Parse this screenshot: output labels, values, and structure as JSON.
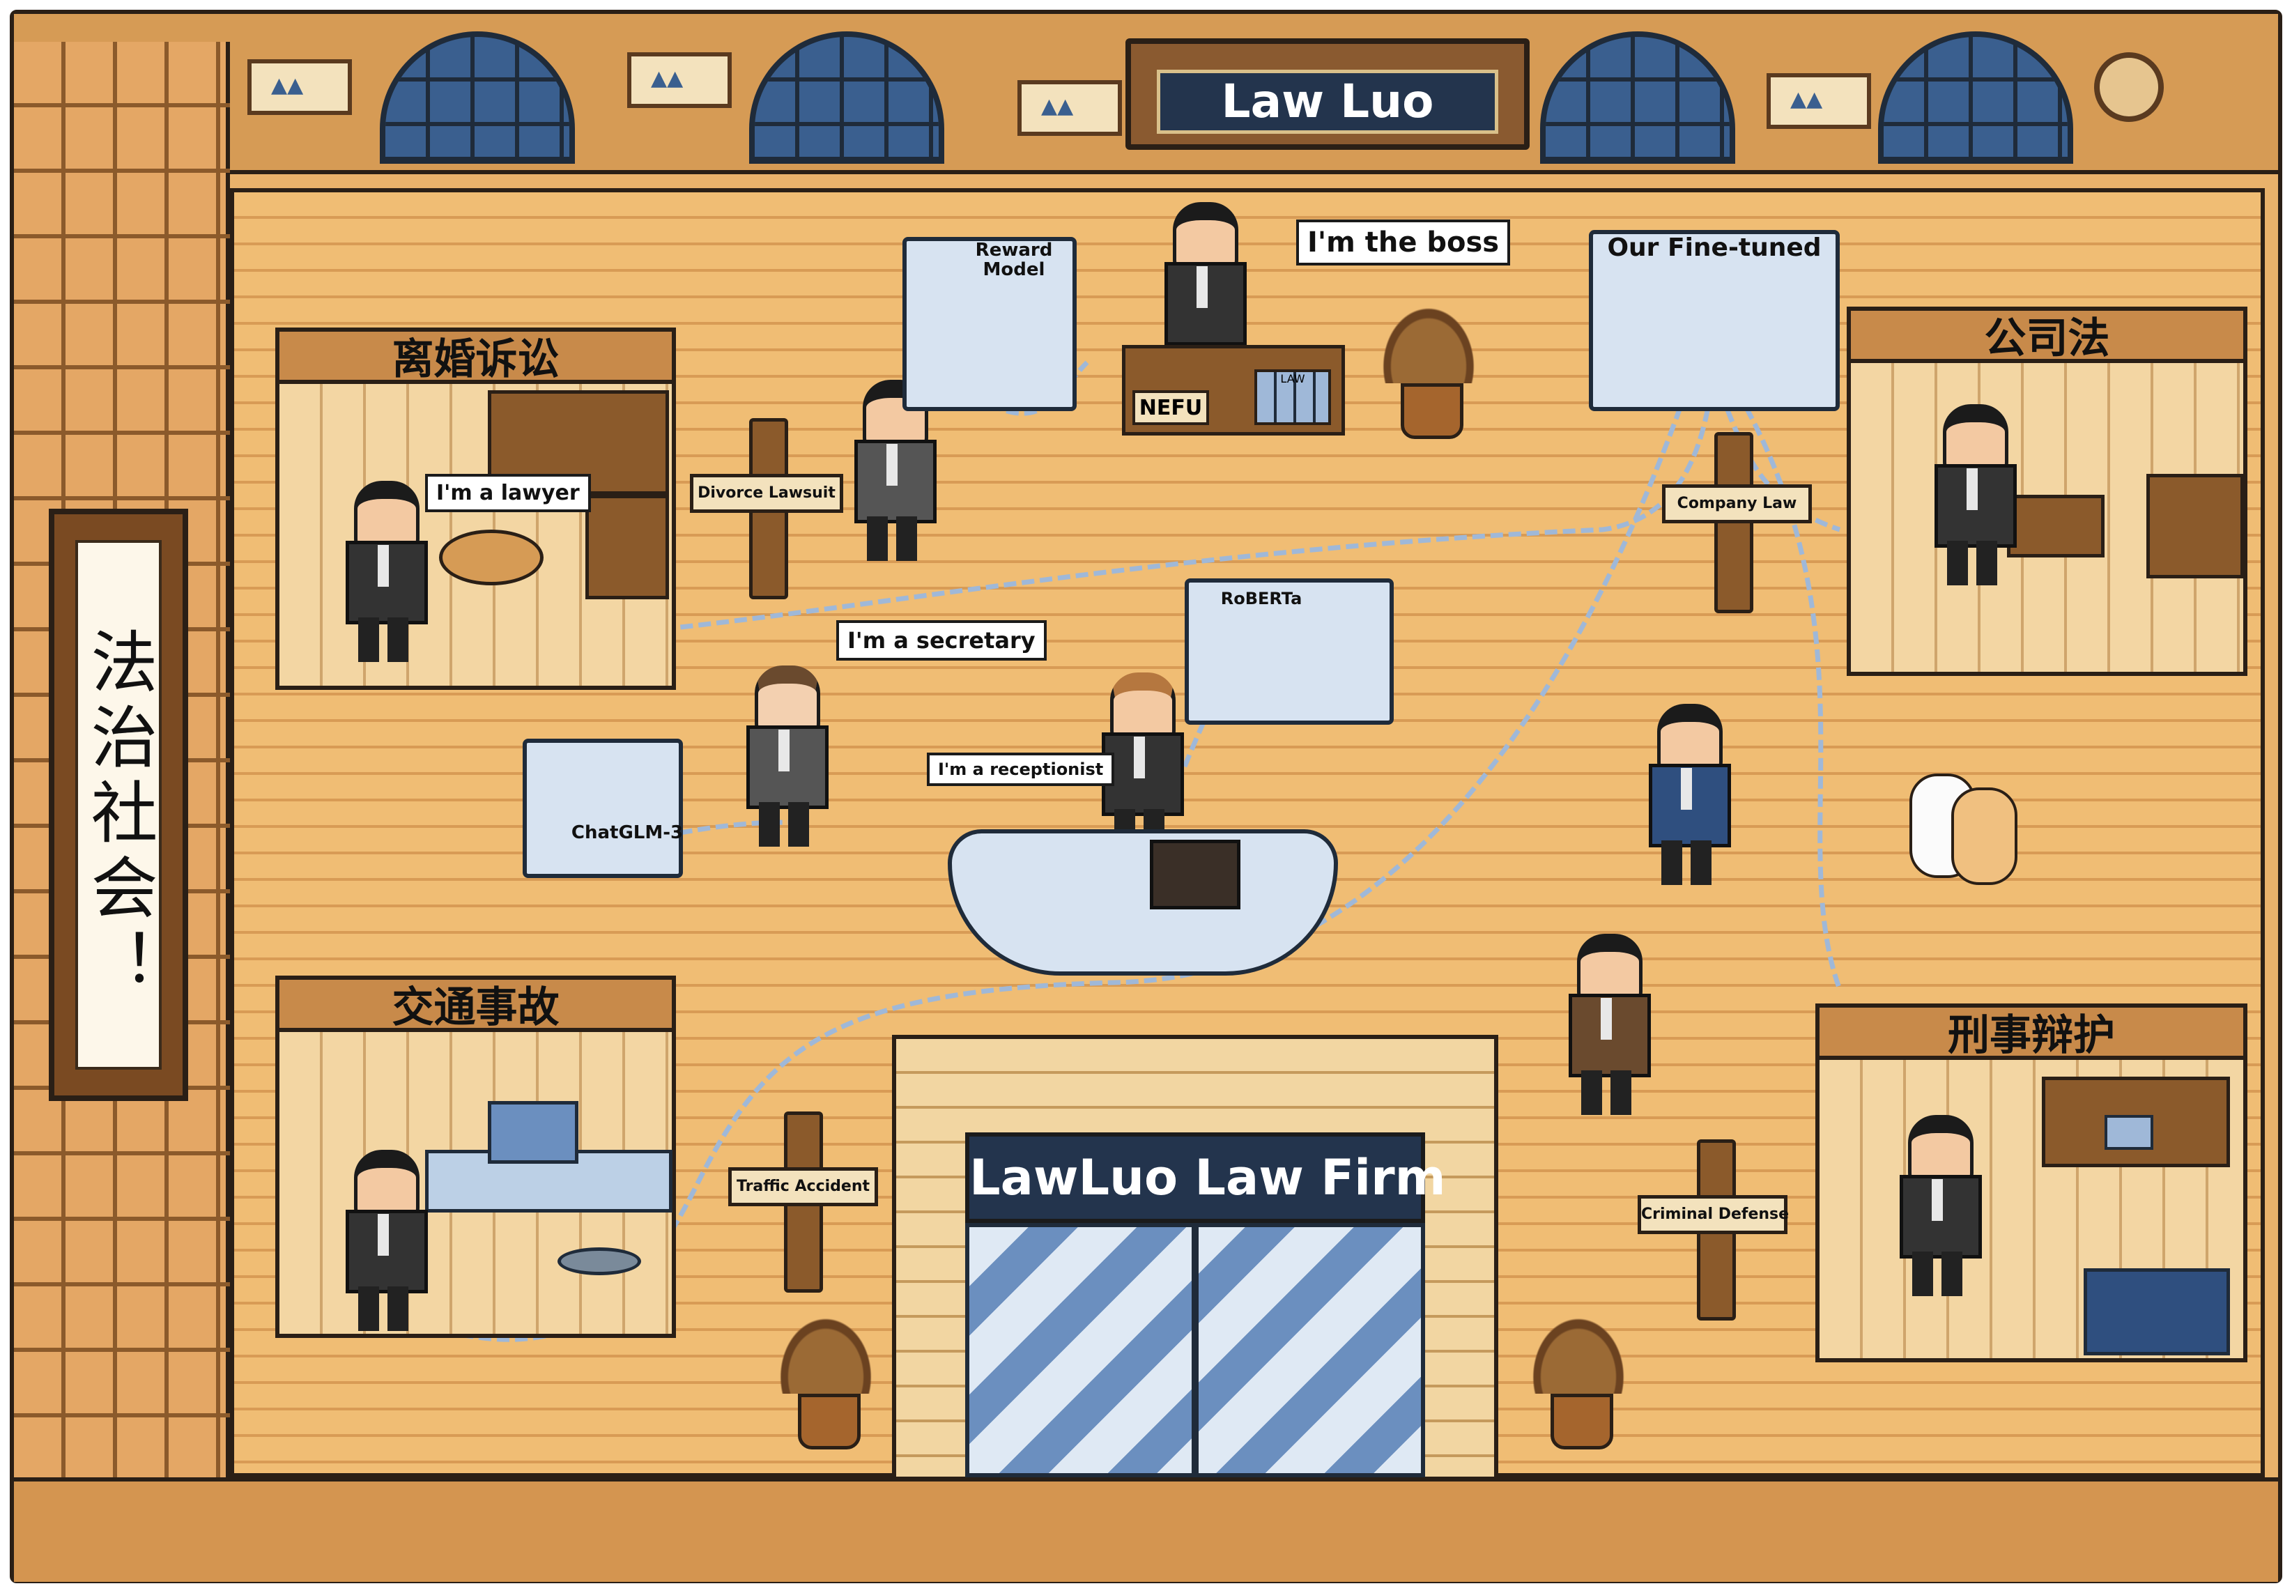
{
  "header": {
    "firm_sign": "Law Luo"
  },
  "scroll": {
    "text": "法治社会！"
  },
  "rooms": {
    "divorce": {
      "title": "离婚诉讼"
    },
    "company": {
      "title": "公司法"
    },
    "traffic": {
      "title": "交通事故"
    },
    "criminal": {
      "title": "刑事辩护"
    }
  },
  "bubbles": {
    "boss": "I'm the boss",
    "lawyer": "I'm a lawyer",
    "secretary": "I'm a secretary",
    "receptionist": "I'm a receptionist"
  },
  "signposts": {
    "divorce": "Divorce Lawsuit",
    "company": "Company Law",
    "traffic": "Traffic Accident",
    "criminal": "Criminal Defense"
  },
  "machines": {
    "reward": "Reward Model",
    "finetuned": "Our Fine-tuned",
    "roberta": "RoBERTa",
    "chatglm": "ChatGLM-3"
  },
  "desk_label": "NEFU",
  "books_label": "LAW",
  "building": {
    "sign": "LawLuo Law Firm"
  },
  "colors": {
    "wall": "#d69b55",
    "floor": "#f0bd74",
    "outline": "#2a1f16",
    "sign_bg": "#23344d",
    "machine": "#d7e3f1",
    "wire": "#9fb8d8"
  }
}
